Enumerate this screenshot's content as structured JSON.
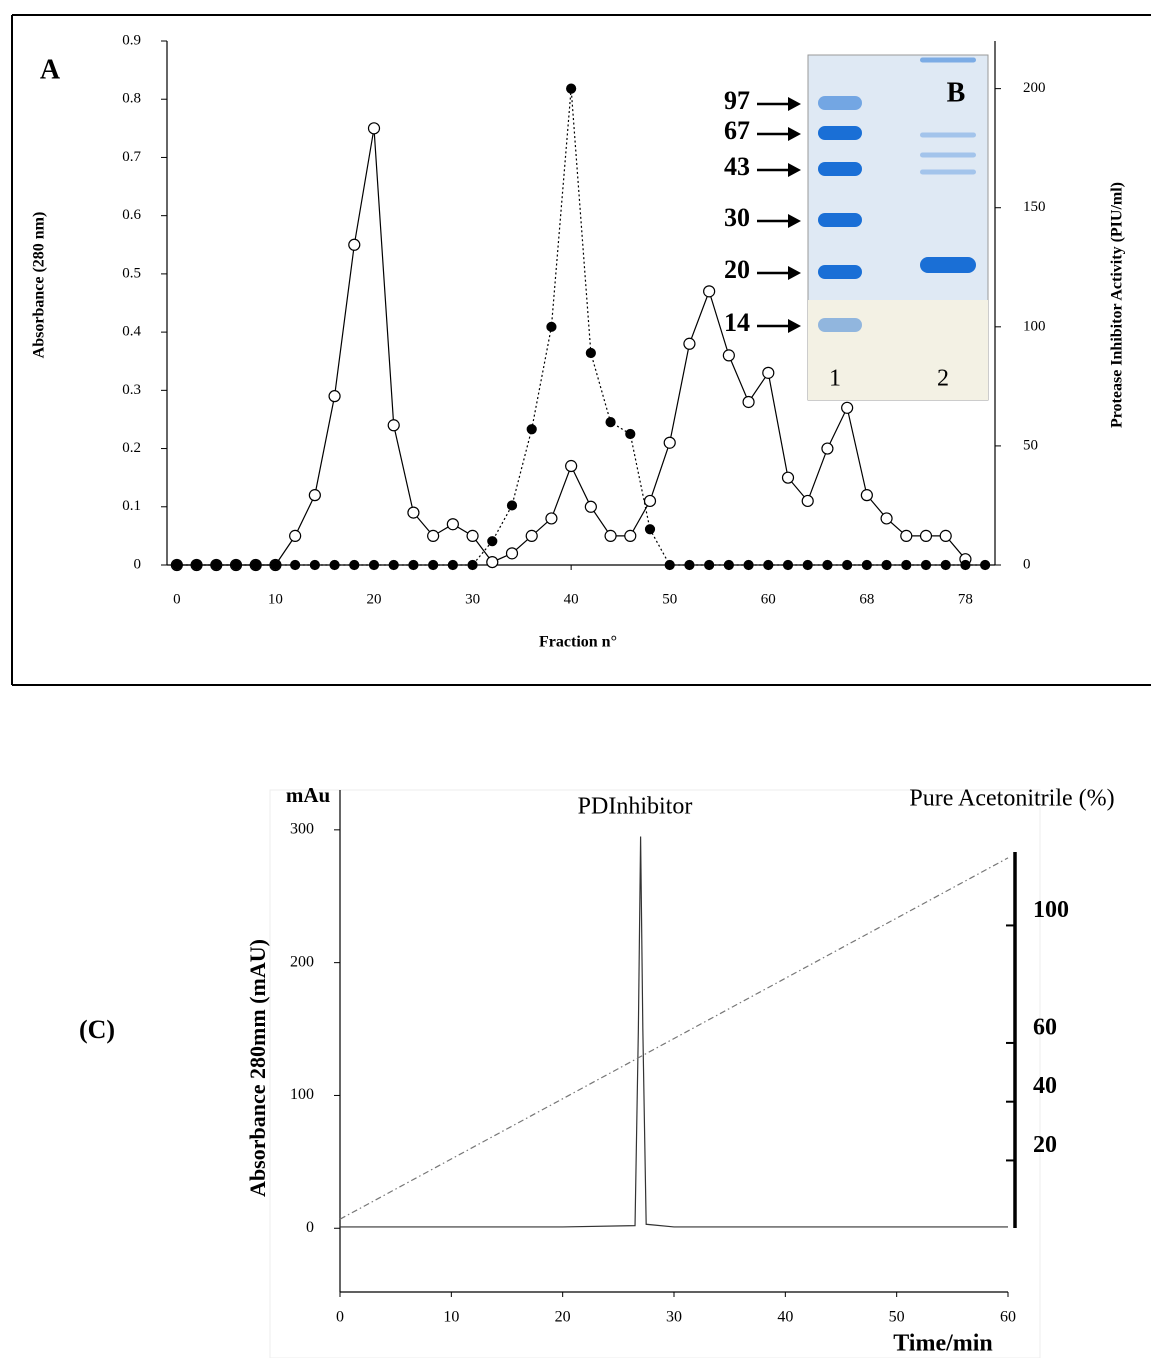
{
  "chart_data": [
    {
      "type": "line",
      "panel_label": "A",
      "y_label": "Absorbance (280 nm)",
      "y2_label": "Protease Inhibitor Activity (PIU/ml)",
      "x_label": "Fraction n°",
      "x": [
        0,
        2,
        4,
        6,
        8,
        10,
        12,
        14,
        16,
        18,
        20,
        22,
        24,
        26,
        28,
        30,
        32,
        34,
        36,
        38,
        40,
        42,
        44,
        46,
        48,
        50,
        52,
        54,
        56,
        58,
        60,
        62,
        64,
        66,
        68,
        70,
        72,
        74,
        76,
        78,
        80,
        82
      ],
      "xlim": [
        -1,
        83
      ],
      "xticks": [
        0,
        10,
        20,
        30,
        40,
        50,
        60,
        {
          "value": 70,
          "label": "68"
        },
        {
          "value": 80,
          "label": "78"
        }
      ],
      "ylim": [
        0,
        0.9
      ],
      "yticks": [
        0,
        0.1,
        0.2,
        0.3,
        0.4,
        0.5,
        0.6,
        0.7,
        0.8,
        0.9
      ],
      "y2lim": [
        0,
        220
      ],
      "y2ticks": [
        0,
        50,
        100,
        150,
        200
      ],
      "grid": false,
      "series": [
        {
          "color": "#000000",
          "marker": "open",
          "line_style": "solid",
          "values": [
            0,
            0,
            0,
            0,
            0,
            0,
            0.05,
            0.12,
            0.29,
            0.55,
            0.75,
            0.24,
            0.09,
            0.05,
            0.07,
            0.05,
            0.005,
            0.02,
            0.05,
            0.08,
            0.17,
            0.1,
            0.05,
            0.05,
            0.11,
            0.21,
            0.38,
            0.47,
            0.36,
            0.28,
            0.33,
            0.15,
            0.11,
            0.2,
            0.27,
            0.12,
            0.08,
            0.05,
            0.05,
            0.05,
            0.01,
            null
          ]
        },
        {
          "color": "#000000",
          "marker": "filled",
          "line_style": "dotted",
          "axis": "y2",
          "values": [
            0,
            0,
            0,
            0,
            0,
            0,
            0,
            0,
            0,
            0,
            0,
            0,
            0,
            0,
            0,
            0,
            10,
            25,
            57,
            100,
            200,
            89,
            60,
            55,
            15,
            0,
            0,
            0,
            0,
            0,
            0,
            0,
            0,
            0,
            0,
            0,
            0,
            0,
            0,
            0,
            0,
            0
          ]
        }
      ]
    },
    {
      "type": "line",
      "panel_label": "(C)",
      "y_unit": "mAu",
      "annotation": "PDInhibitor",
      "y_label": "Absorbance 280mm (mAU)",
      "y2_label": "Pure Acetonitrile (%)",
      "x_label": "Time/min",
      "xlim": [
        0,
        60
      ],
      "xticks": [
        0,
        10,
        20,
        30,
        40,
        50,
        60
      ],
      "ylim": [
        -48,
        330
      ],
      "yticks": [
        0,
        100,
        200,
        300
      ],
      "y2lim": [
        -3,
        125
      ],
      "y2ticks": [
        20,
        40,
        60,
        100
      ],
      "grid": false,
      "series": [
        {
          "color": "#333333",
          "marker": "none",
          "line_style": "solid",
          "x": [
            0,
            10,
            20,
            26.5,
            26.8,
            27,
            27.2,
            27.5,
            30,
            40,
            50,
            60
          ],
          "values": [
            1,
            1,
            1,
            2,
            150,
            295,
            150,
            3,
            1,
            1,
            1,
            1
          ]
        },
        {
          "color": "#777777",
          "marker": "none",
          "line_style": "dashdot",
          "axis": "y2",
          "x": [
            0,
            60
          ],
          "values": [
            0,
            123
          ]
        }
      ]
    }
  ],
  "gel": {
    "label": "B",
    "markers": [
      "97",
      "67",
      "43",
      "30",
      "20",
      "14"
    ],
    "lanes": [
      "1",
      "2"
    ]
  }
}
